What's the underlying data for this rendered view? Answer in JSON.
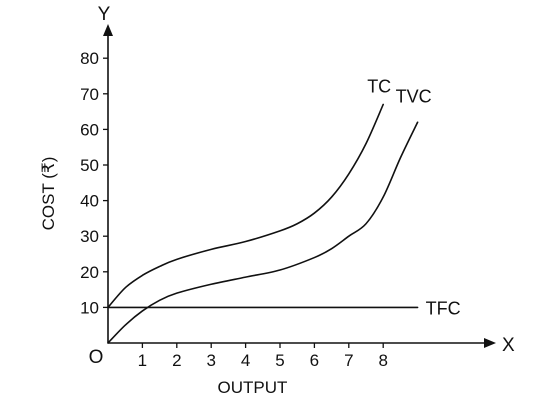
{
  "chart_data": {
    "type": "line",
    "title": "",
    "xlabel": "OUTPUT",
    "ylabel": "COST (₹)",
    "x_axis_letter": "X",
    "y_axis_letter": "Y",
    "origin_label": "O",
    "xlim": [
      0,
      9.3
    ],
    "ylim": [
      0,
      85
    ],
    "x_ticks": [
      1,
      2,
      3,
      4,
      5,
      6,
      7,
      8
    ],
    "y_ticks": [
      10,
      20,
      30,
      40,
      50,
      60,
      70,
      80
    ],
    "grid": false,
    "legend": "none",
    "series": [
      {
        "name": "TC",
        "x": [
          0,
          0.5,
          1,
          1.5,
          2,
          3,
          4,
          5,
          5.5,
          6,
          6.5,
          7,
          7.5,
          8
        ],
        "y": [
          10,
          15.5,
          19,
          21.5,
          23.5,
          26.3,
          28.5,
          31.5,
          33.5,
          36.5,
          41,
          47.5,
          56,
          67
        ]
      },
      {
        "name": "TVC",
        "x": [
          0,
          0.5,
          1,
          1.5,
          2,
          3,
          4,
          5,
          6,
          6.5,
          7,
          7.5,
          8,
          8.5,
          9
        ],
        "y": [
          0,
          5,
          9,
          12,
          14,
          16.5,
          18.5,
          20.5,
          24,
          26.5,
          30,
          33.5,
          41,
          52,
          62
        ]
      },
      {
        "name": "TFC",
        "x": [
          0,
          9
        ],
        "y": [
          10,
          10
        ]
      }
    ]
  }
}
